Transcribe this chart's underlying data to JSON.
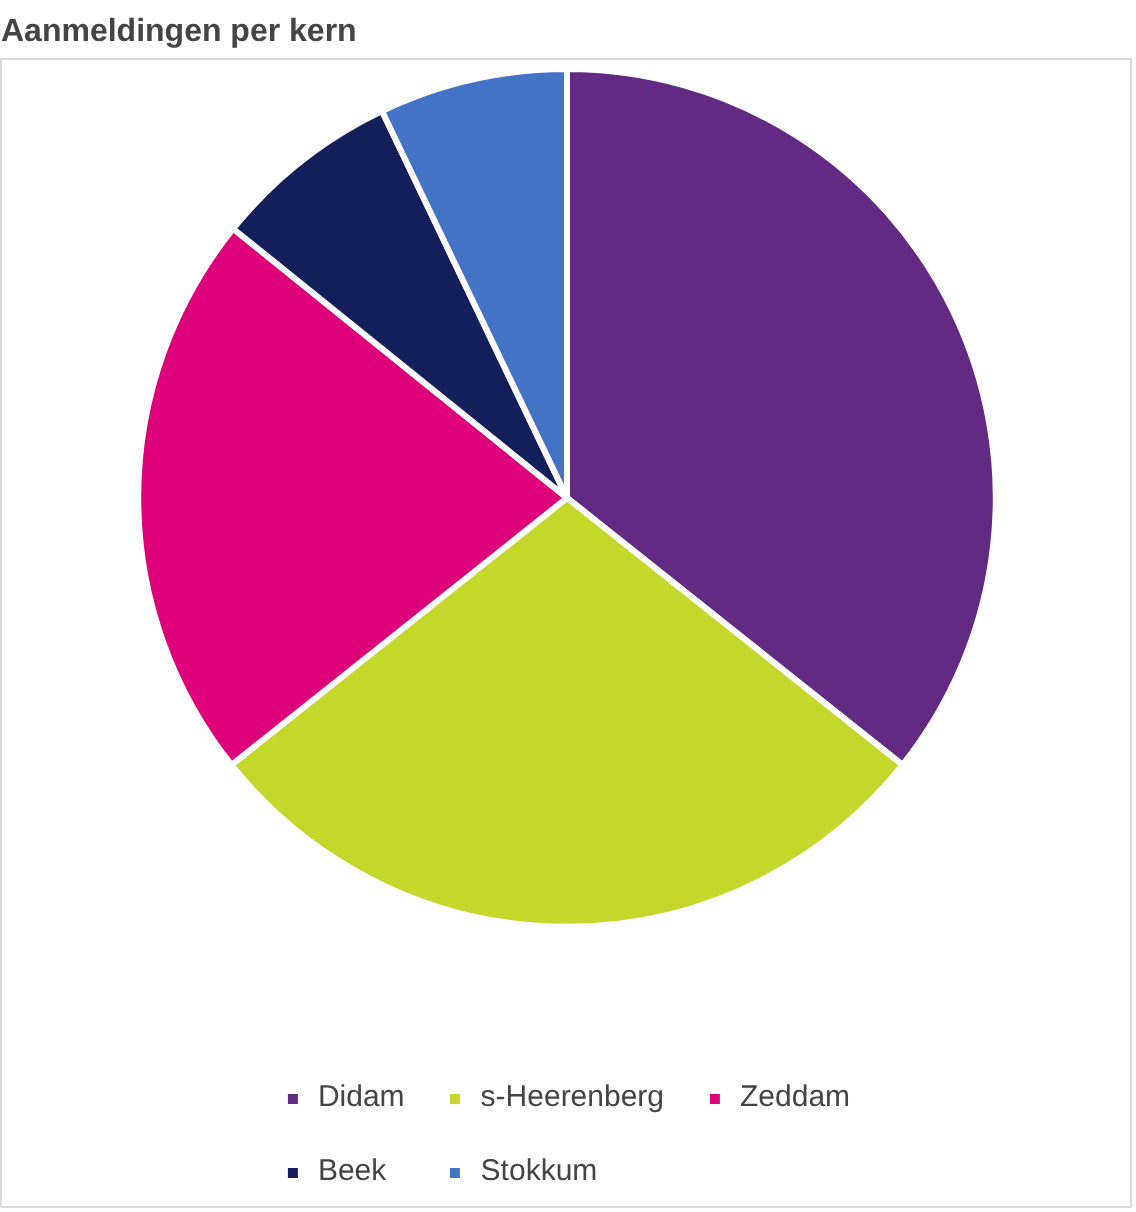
{
  "chart_data": {
    "type": "pie",
    "title": "Aanmeldingen per kern",
    "categories": [
      "Didam",
      "s-Heerenberg",
      "Zeddam",
      "Beek",
      "Stokkum"
    ],
    "values": [
      35.7,
      28.6,
      21.5,
      7.1,
      7.1
    ],
    "colors": [
      "#622a83",
      "#c5d72a",
      "#dd0079",
      "#141e5a",
      "#4472c4"
    ],
    "legend": "bottom"
  }
}
